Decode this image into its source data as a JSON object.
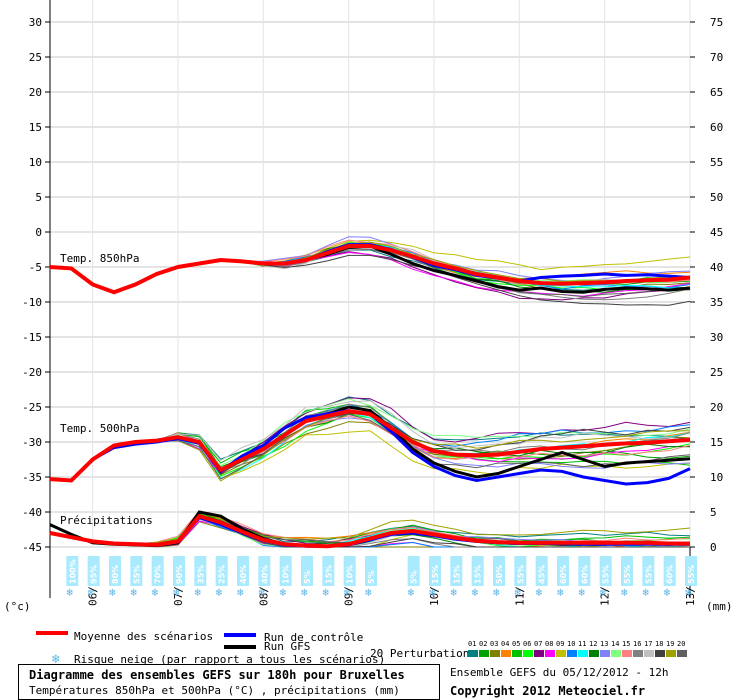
{
  "chart_data": {
    "type": "line",
    "x_dates": [
      "06/12",
      "07/12",
      "08/12",
      "09/12",
      "10/12",
      "11/12",
      "12/12",
      "13/12"
    ],
    "left_axis_unit": "(°c)",
    "right_axis_unit": "(mm)",
    "left_ticks": [
      30,
      25,
      20,
      15,
      10,
      5,
      0,
      -5,
      -10,
      -15,
      -20,
      -25,
      -30,
      -35,
      -40,
      -45
    ],
    "right_ticks": [
      75,
      70,
      65,
      60,
      55,
      50,
      45,
      40,
      35,
      30,
      25,
      20,
      15,
      10,
      5,
      0
    ],
    "label_t850": "Temp. 850hPa",
    "label_t500": "Temp. 500hPa",
    "label_precip": "Précipitations",
    "hours": [
      0,
      6,
      12,
      18,
      24,
      30,
      36,
      42,
      48,
      54,
      60,
      66,
      72,
      78,
      84,
      90,
      96,
      102,
      108,
      114,
      120,
      126,
      132,
      138,
      144,
      150,
      156,
      162,
      168,
      174,
      180
    ],
    "t850": {
      "mean": [
        -5,
        -5.2,
        -7.5,
        -8.6,
        -7.5,
        -6,
        -5,
        -4.5,
        -4,
        -4.2,
        -4.5,
        -4.5,
        -4,
        -3,
        -2,
        -2,
        -2.6,
        -3.5,
        -4.5,
        -5.2,
        -6,
        -6.5,
        -7,
        -7.3,
        -7.4,
        -7.3,
        -7.2,
        -7,
        -6.9,
        -6.8,
        -6.5
      ],
      "control": [
        -5,
        -5.2,
        -7.5,
        -8.6,
        -7.5,
        -6,
        -5,
        -4.5,
        -4,
        -4.2,
        -4.5,
        -4.5,
        -4,
        -2.8,
        -1.8,
        -1.8,
        -2.5,
        -3.6,
        -4.8,
        -5.4,
        -6.2,
        -6.6,
        -7,
        -6.5,
        -6.3,
        -6.2,
        -6,
        -6.2,
        -6.1,
        -6.3,
        -6.5
      ],
      "gfs": [
        -5,
        -5.2,
        -7.5,
        -8.6,
        -7.5,
        -6,
        -5,
        -4.5,
        -4,
        -4.2,
        -4.5,
        -4.5,
        -4,
        -3.2,
        -2.2,
        -2,
        -3.2,
        -4.5,
        -5.5,
        -6.2,
        -7,
        -7.8,
        -8.3,
        -8,
        -8.5,
        -8.6,
        -8.2,
        -8,
        -8.1,
        -8.3,
        -8
      ]
    },
    "t500": {
      "mean": [
        -35.3,
        -35.5,
        -32.5,
        -30.5,
        -30,
        -29.8,
        -29.3,
        -30,
        -34,
        -32.5,
        -31,
        -29,
        -27,
        -26.3,
        -25.6,
        -26,
        -28,
        -30,
        -31.3,
        -31.8,
        -31.9,
        -31.8,
        -31.4,
        -31,
        -30.8,
        -30.6,
        -30.4,
        -30.2,
        -30.1,
        -29.9,
        -29.7
      ],
      "control": [
        -35.3,
        -35.5,
        -32.5,
        -30.8,
        -30.3,
        -30,
        -29.5,
        -30.2,
        -34.2,
        -32,
        -30.5,
        -28,
        -26.5,
        -26,
        -25.5,
        -26,
        -28.5,
        -31.5,
        -33.5,
        -34.8,
        -35.5,
        -35,
        -34.5,
        -34,
        -34.2,
        -35,
        -35.5,
        -36,
        -35.8,
        -35.2,
        -33.8
      ],
      "gfs": [
        -35.3,
        -35.5,
        -32.5,
        -30.5,
        -30,
        -29.8,
        -29.3,
        -30,
        -34,
        -32.5,
        -31,
        -29,
        -27,
        -26,
        -25,
        -25.5,
        -28,
        -31,
        -33,
        -34.2,
        -35,
        -34.5,
        -33.5,
        -32.5,
        -31.5,
        -32.5,
        -33.5,
        -33,
        -32.8,
        -32.6,
        -32.4
      ]
    },
    "precip": {
      "mean": [
        2,
        1.4,
        0.8,
        0.5,
        0.4,
        0.3,
        0.8,
        4.4,
        3.5,
        2.2,
        1,
        0.4,
        0.2,
        0.1,
        0.4,
        1.2,
        2,
        2.3,
        1.8,
        1.3,
        0.9,
        0.7,
        0.6,
        0.6,
        0.6,
        0.6,
        0.6,
        0.6,
        0.6,
        0.5,
        0.5
      ],
      "control": [
        2,
        1.4,
        0.8,
        0.5,
        0.4,
        0.3,
        0.7,
        4.2,
        3.2,
        2,
        0.9,
        0.3,
        0.1,
        0.1,
        0.3,
        1,
        1.8,
        2,
        1.6,
        1.1,
        0.8,
        0.6,
        0.5,
        0.5,
        0.5,
        0.4,
        0.4,
        0.4,
        0.4,
        0.4,
        0.4
      ],
      "gfs": [
        3.2,
        1.8,
        0.6,
        0.4,
        0.3,
        0.2,
        0.6,
        5,
        4.4,
        2.6,
        1.2,
        0.4,
        0.2,
        0.1,
        0.3,
        1.1,
        1.9,
        2.2,
        1.7,
        1.2,
        0.8,
        0.6,
        0.5,
        0.5,
        0.4,
        0.4,
        0.4,
        0.7,
        0.5,
        0.4,
        0.5
      ]
    },
    "snow_risk": [
      {
        "h": 6,
        "pct": "100%"
      },
      {
        "h": 12,
        "pct": "95%"
      },
      {
        "h": 18,
        "pct": "80%"
      },
      {
        "h": 24,
        "pct": "55%"
      },
      {
        "h": 30,
        "pct": "70%"
      },
      {
        "h": 36,
        "pct": "90%"
      },
      {
        "h": 42,
        "pct": "35%"
      },
      {
        "h": 48,
        "pct": "25%"
      },
      {
        "h": 54,
        "pct": "40%"
      },
      {
        "h": 60,
        "pct": "40%"
      },
      {
        "h": 66,
        "pct": "10%"
      },
      {
        "h": 72,
        "pct": "5%"
      },
      {
        "h": 78,
        "pct": "15%"
      },
      {
        "h": 84,
        "pct": "10%"
      },
      {
        "h": 90,
        "pct": "5%"
      },
      {
        "h": 102,
        "pct": "5%"
      },
      {
        "h": 108,
        "pct": "15%"
      },
      {
        "h": 114,
        "pct": "15%"
      },
      {
        "h": 120,
        "pct": "15%"
      },
      {
        "h": 126,
        "pct": "50%"
      },
      {
        "h": 132,
        "pct": "55%"
      },
      {
        "h": 138,
        "pct": "45%"
      },
      {
        "h": 144,
        "pct": "60%"
      },
      {
        "h": 150,
        "pct": "60%"
      },
      {
        "h": 156,
        "pct": "55%"
      },
      {
        "h": 162,
        "pct": "55%"
      },
      {
        "h": 168,
        "pct": "55%"
      },
      {
        "h": 174,
        "pct": "60%"
      },
      {
        "h": 180,
        "pct": "55%"
      }
    ],
    "colors": {
      "mean": "#ff0000",
      "control": "#0000ff",
      "gfs": "#000000",
      "snow": "#aaeaff"
    }
  },
  "legend": {
    "mean": "Moyenne des scénarios",
    "control": "Run de contrôle",
    "gfs": "Run GFS",
    "snow": "Risque neige (par rapport a tous les scénarios)",
    "perturbations": "20 Perturbations",
    "pert_nums": [
      "01",
      "02",
      "03",
      "04",
      "05",
      "06",
      "07",
      "08",
      "09",
      "10",
      "11",
      "12",
      "13",
      "14",
      "15",
      "16",
      "17",
      "18",
      "19",
      "20"
    ],
    "pert_colors": [
      "#008080",
      "#00a000",
      "#808000",
      "#ff8000",
      "#00c000",
      "#00ff00",
      "#800080",
      "#ff00ff",
      "#c0c000",
      "#0080ff",
      "#00ffff",
      "#008000",
      "#8080ff",
      "#80ff80",
      "#ff8080",
      "#808080",
      "#c0c0c0",
      "#404040",
      "#a0a000",
      "#606060"
    ]
  },
  "title_box": {
    "line1": "Diagramme des ensembles GEFS sur 180h pour Bruxelles",
    "line2": "Températures 850hPa et 500hPa (°C) , précipitations (mm)"
  },
  "info": {
    "run": "Ensemble GEFS du 05/12/2012 - 12h",
    "copyright": "Copyright 2012 Meteociel.fr"
  }
}
